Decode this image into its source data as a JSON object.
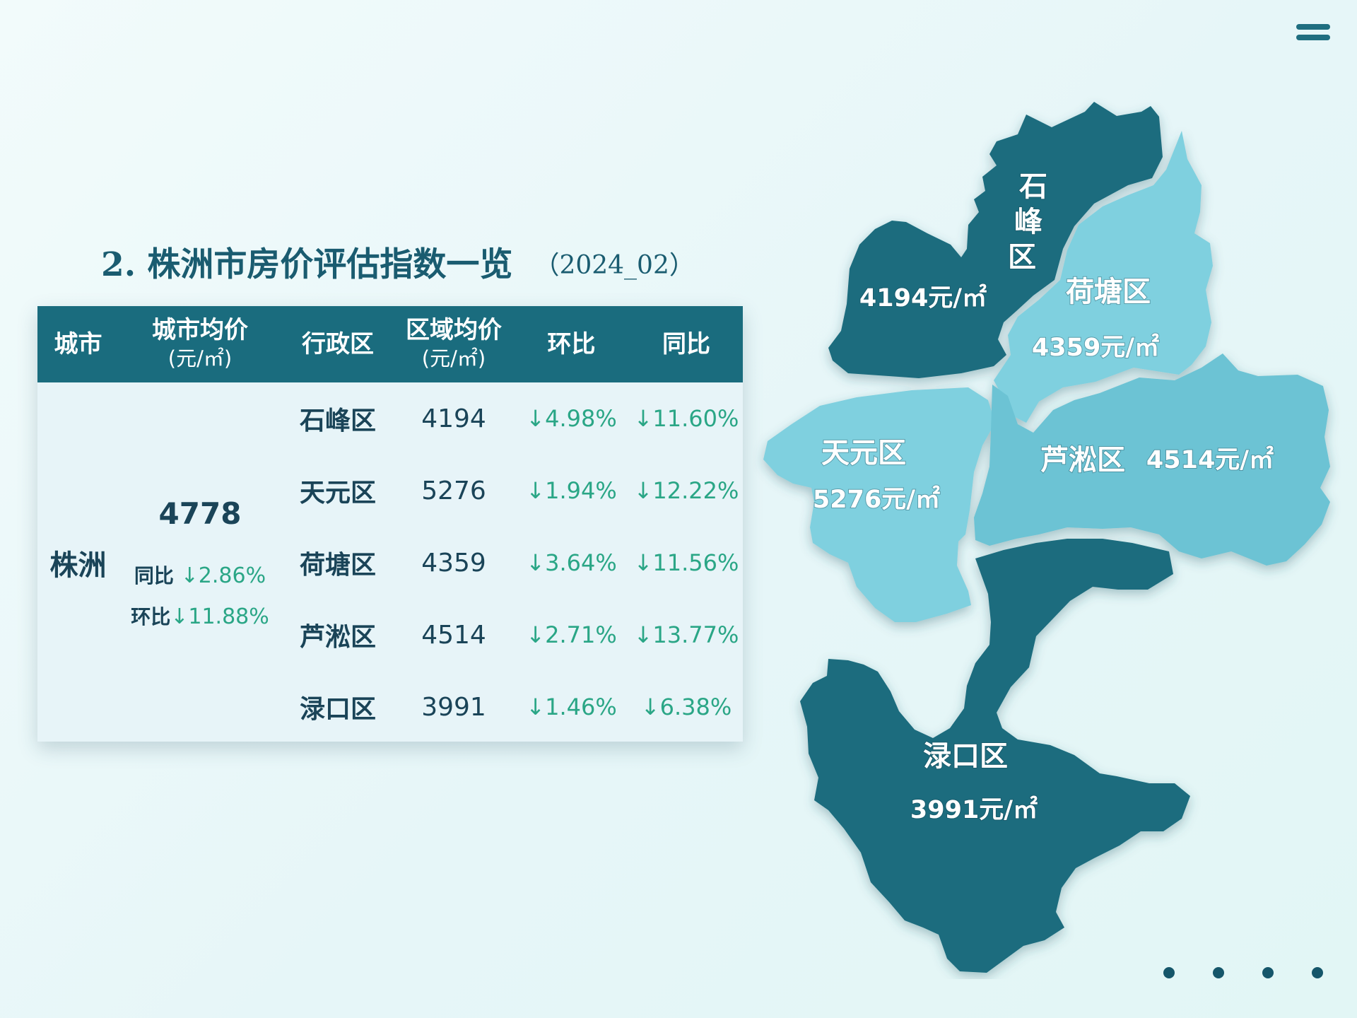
{
  "title": {
    "main": "2. 株洲市房价评估指数一览",
    "period": "（2024_02）"
  },
  "table": {
    "headers": {
      "city": "城市",
      "city_avg": "城市均价",
      "city_avg_unit": "(元/㎡)",
      "district": "行政区",
      "district_avg": "区域均价",
      "district_avg_unit": "(元/㎡)",
      "mom": "环比",
      "yoy": "同比"
    },
    "city": "株洲",
    "city_avg": "4778",
    "city_yoy_label": "同比",
    "city_yoy_value": "↓2.86%",
    "city_mom_label": "环比",
    "city_mom_value": "↓11.88%",
    "rows": [
      {
        "district": "石峰区",
        "price": "4194",
        "mom": "↓4.98%",
        "yoy": "↓11.60%"
      },
      {
        "district": "天元区",
        "price": "5276",
        "mom": "↓1.94%",
        "yoy": "↓12.22%"
      },
      {
        "district": "荷塘区",
        "price": "4359",
        "mom": "↓3.64%",
        "yoy": "↓11.56%"
      },
      {
        "district": "芦淞区",
        "price": "4514",
        "mom": "↓2.71%",
        "yoy": "↓13.77%"
      },
      {
        "district": "渌口区",
        "price": "3991",
        "mom": "↓1.46%",
        "yoy": "↓6.38%"
      }
    ]
  },
  "map": {
    "regions": [
      {
        "name": "石峰区",
        "name_chars": [
          "石",
          "峰",
          "区"
        ],
        "price": "4194元/㎡",
        "color": "#1a6c7e"
      },
      {
        "name": "荷塘区",
        "price": "4359元/㎡",
        "color": "#7fd0df"
      },
      {
        "name": "天元区",
        "price": "5276元/㎡",
        "color": "#7fd0df"
      },
      {
        "name": "芦淞区",
        "price": "4514元/㎡",
        "color": "#6cc3d4"
      },
      {
        "name": "渌口区",
        "price": "3991元/㎡",
        "color": "#1a6c7e"
      }
    ]
  },
  "colors": {
    "header_bg": "#1a6c7e",
    "accent_green": "#2aa686",
    "dark_region": "#1a6c7e",
    "light_region": "#7fd0df"
  }
}
